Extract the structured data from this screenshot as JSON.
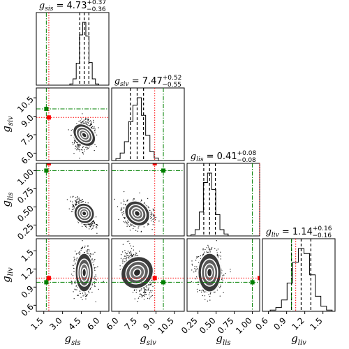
{
  "chart_data": {
    "type": "corner",
    "parameters": [
      {
        "symbol": "g",
        "subscript": "sis",
        "median": "4.73",
        "plus": "+0.37",
        "minus": "−0.36",
        "center": 4.73,
        "sigma": 0.36,
        "ticks": [
          "1.5",
          "3.0",
          "4.5",
          "6.0"
        ],
        "tick_values": [
          1.5,
          3.0,
          4.5,
          6.0
        ],
        "range": [
          0.9,
          6.7
        ],
        "quantiles": [
          4.37,
          4.73,
          5.1
        ],
        "hist_counts": [
          2,
          10,
          35,
          80,
          100,
          78,
          36,
          10,
          2
        ]
      },
      {
        "symbol": "g",
        "subscript": "siv",
        "median": "7.47",
        "plus": "+0.52",
        "minus": "−0.55",
        "center": 7.47,
        "sigma": 0.54,
        "ticks": [
          "6.0",
          "7.5",
          "9.0",
          "10.5"
        ],
        "tick_values": [
          6.0,
          7.5,
          9.0,
          10.5
        ],
        "range": [
          5.4,
          11.3
        ],
        "quantiles": [
          6.92,
          7.47,
          7.99
        ],
        "hist_counts": [
          3,
          12,
          30,
          62,
          88,
          100,
          72,
          40,
          14,
          4
        ]
      },
      {
        "symbol": "g",
        "subscript": "lis",
        "median": "0.41",
        "plus": "+0.08",
        "minus": "−0.08",
        "center": 0.41,
        "sigma": 0.08,
        "ticks": [
          "0.25",
          "0.50",
          "0.75",
          "1.00"
        ],
        "tick_values": [
          0.25,
          0.5,
          0.75,
          1.0
        ],
        "range": [
          0.1,
          1.1
        ],
        "quantiles": [
          0.33,
          0.41,
          0.49
        ],
        "hist_counts": [
          2,
          10,
          38,
          85,
          100,
          74,
          34,
          10,
          3
        ]
      },
      {
        "symbol": "g",
        "subscript": "liv",
        "median": "1.14",
        "plus": "+0.16",
        "minus": "−0.16",
        "center": 1.14,
        "sigma": 0.16,
        "ticks": [
          "0.6",
          "0.9",
          "1.2",
          "1.5"
        ],
        "tick_values": [
          0.6,
          0.9,
          1.2,
          1.5
        ],
        "range": [
          0.5,
          1.7
        ],
        "quantiles": [
          0.98,
          1.14,
          1.3
        ],
        "hist_counts": [
          2,
          6,
          18,
          45,
          78,
          100,
          92,
          58,
          24,
          8,
          2
        ]
      }
    ],
    "truths_red": [
      1.9,
      8.9,
      1.1,
      1.05
    ],
    "truths_green": [
      1.7,
      9.6,
      1.0,
      0.98
    ],
    "correlations": {
      "1-0": 0.1,
      "2-0": -0.6,
      "2-1": -0.1,
      "3-0": 0.0,
      "3-1": -0.5,
      "3-2": 0.0
    },
    "colors": {
      "red_truth": "#ff0000",
      "green_truth": "#008000",
      "contour": "#ffffff",
      "points": "#000000",
      "hist": "#000000"
    }
  }
}
